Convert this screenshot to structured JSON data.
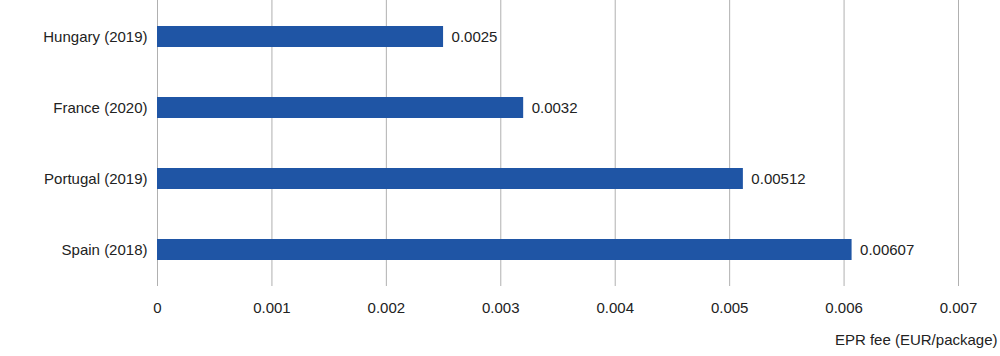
{
  "chart_data": {
    "type": "bar",
    "orientation": "horizontal",
    "categories": [
      "Hungary (2019)",
      "France (2020)",
      "Portugal (2019)",
      "Spain (2018)"
    ],
    "values": [
      0.0025,
      0.0032,
      0.00512,
      0.00607
    ],
    "color": "#1f55a5",
    "x_label": "EPR fee (EUR/package)",
    "xlim": [
      0,
      0.007
    ],
    "xticks": [
      0,
      0.001,
      0.002,
      0.003,
      0.004,
      0.005,
      0.006,
      0.007
    ],
    "grid": true,
    "data_labels": true
  }
}
